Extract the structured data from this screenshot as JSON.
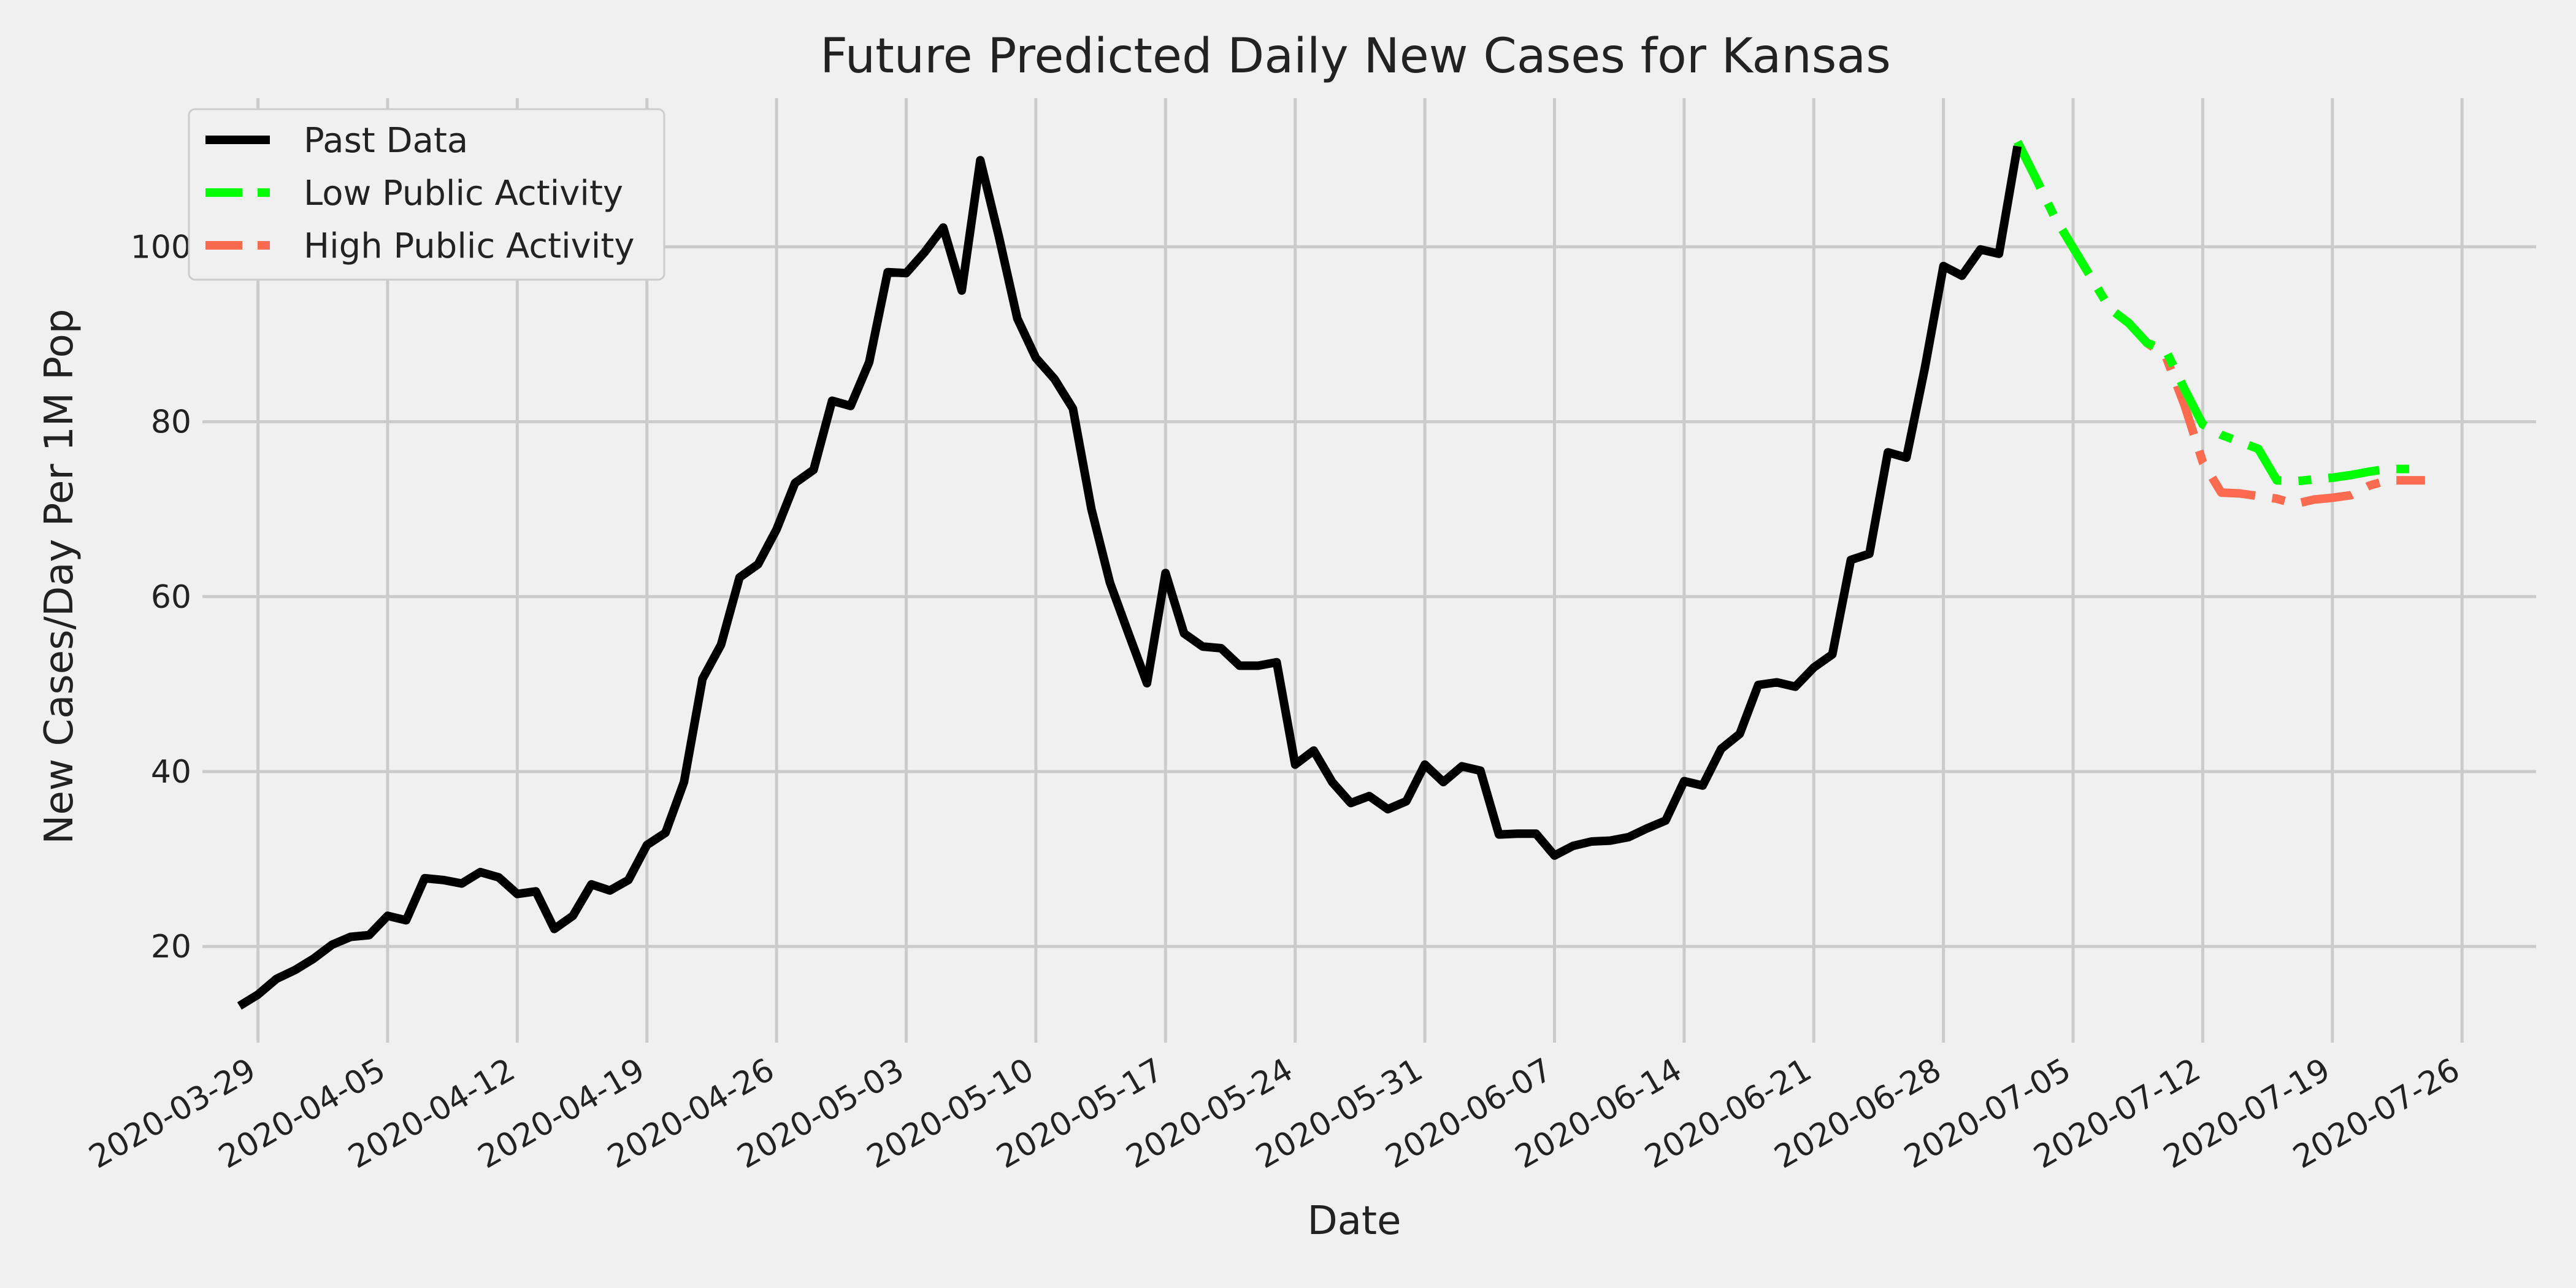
{
  "chart_data": {
    "type": "line",
    "title": "Future Predicted Daily New Cases for Kansas",
    "xlabel": "Date",
    "ylabel": "New Cases/Day Per 1M Pop",
    "grid": true,
    "legend_position": "top-left",
    "x_axis": {
      "start": "2020-03-26",
      "end": "2020-07-30",
      "ticks": [
        "2020-03-29",
        "2020-04-05",
        "2020-04-12",
        "2020-04-19",
        "2020-04-26",
        "2020-05-03",
        "2020-05-10",
        "2020-05-17",
        "2020-05-24",
        "2020-05-31",
        "2020-06-07",
        "2020-06-14",
        "2020-06-21",
        "2020-06-28",
        "2020-07-05",
        "2020-07-12",
        "2020-07-19",
        "2020-07-26"
      ]
    },
    "y_axis": {
      "ylim": [
        9,
        117
      ],
      "ticks": [
        20,
        40,
        60,
        80,
        100
      ]
    },
    "series": [
      {
        "name": "Past Data",
        "color": "#000000",
        "dash": "solid",
        "start_date": "2020-03-28",
        "values": [
          13.2,
          14.5,
          16.3,
          17.3,
          18.6,
          20.2,
          21.1,
          21.3,
          23.5,
          23.0,
          27.8,
          27.6,
          27.2,
          28.5,
          27.9,
          26.0,
          26.3,
          22.0,
          23.5,
          27.1,
          26.4,
          27.6,
          31.6,
          33.0,
          38.8,
          50.6,
          54.5,
          62.2,
          63.7,
          67.7,
          73.0,
          74.5,
          82.4,
          81.8,
          86.8,
          97.1,
          97.0,
          99.4,
          102.2,
          95.0,
          109.9,
          101.2,
          91.8,
          87.3,
          84.9,
          81.5,
          70.0,
          61.6,
          55.8,
          50.1,
          62.7,
          55.8,
          54.3,
          54.1,
          52.1,
          52.1,
          52.5,
          40.8,
          42.4,
          38.8,
          36.4,
          37.2,
          35.7,
          36.6,
          40.8,
          38.8,
          40.6,
          40.1,
          32.8,
          32.9,
          32.9,
          30.4,
          31.5,
          32.0,
          32.1,
          32.5,
          33.5,
          34.4,
          38.9,
          38.4,
          42.6,
          44.3,
          49.9,
          50.2,
          49.7,
          51.9,
          53.4,
          64.2,
          64.9,
          76.5,
          75.9,
          86.2,
          97.8,
          96.7,
          99.7,
          99.2,
          111.5
        ]
      },
      {
        "name": "Low Public Activity",
        "color": "#00ff00",
        "dash": "6,2,1.5,2",
        "start_date": "2020-07-02",
        "values": [
          112.0,
          107.8,
          103.4,
          99.9,
          96.4,
          92.9,
          91.3,
          89.0,
          88.2,
          83.8,
          79.7,
          78.5,
          77.7,
          76.9,
          73.3,
          73.2,
          73.4,
          73.6,
          73.9,
          74.3,
          74.6,
          74.6,
          74.6
        ]
      },
      {
        "name": "High Public Activity",
        "color": "#fc6b4f",
        "dash": "6,2,1.5,2",
        "start_date": "2020-07-02",
        "values": [
          112.0,
          107.8,
          103.4,
          99.9,
          96.4,
          92.9,
          91.3,
          89.0,
          87.5,
          82.0,
          75.4,
          71.9,
          71.8,
          71.5,
          71.2,
          70.6,
          71.1,
          71.3,
          71.6,
          72.7,
          73.3,
          73.3,
          73.3
        ]
      }
    ]
  }
}
